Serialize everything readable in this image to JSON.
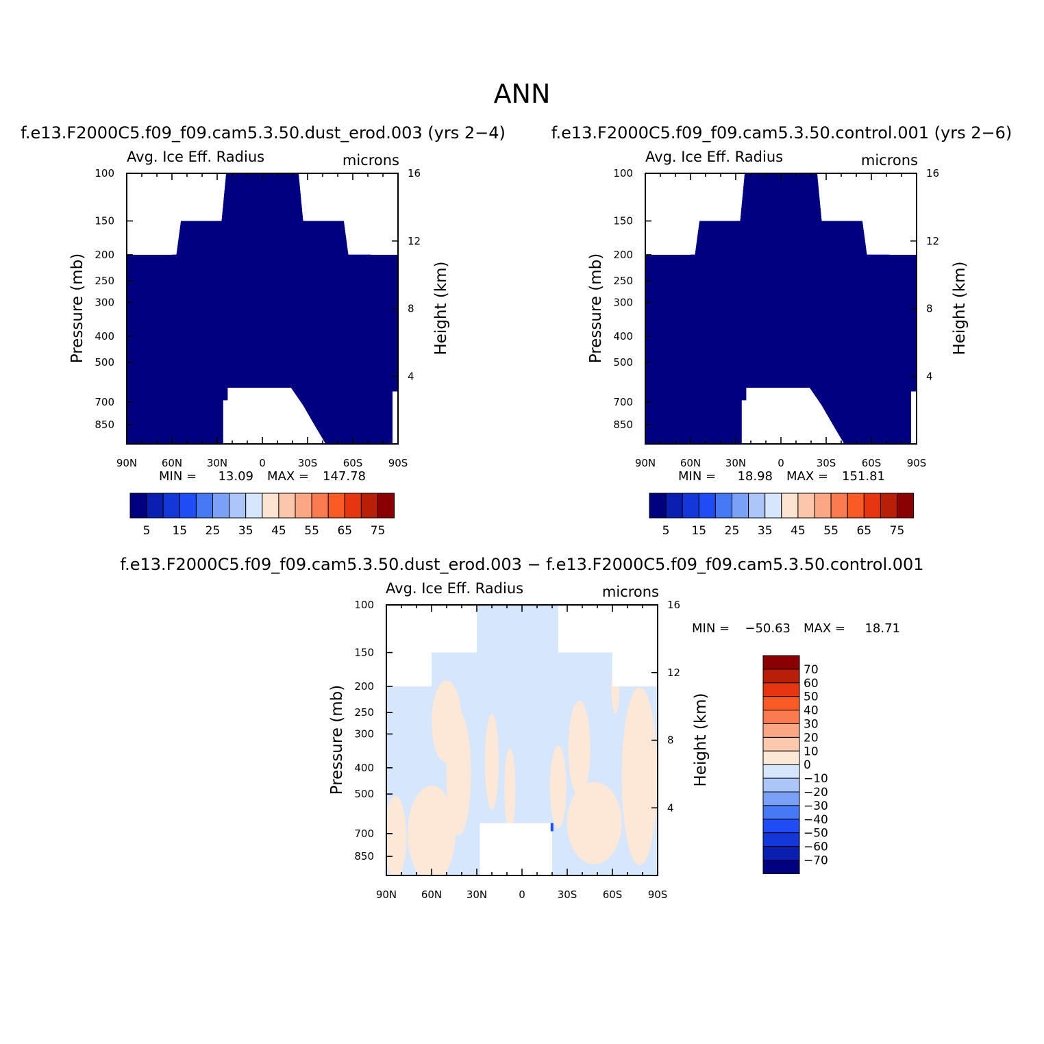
{
  "figure": {
    "title": "ANN"
  },
  "colors": {
    "sequential": [
      "#000080",
      "#0a1eb0",
      "#1437d9",
      "#1f4cf5",
      "#4779f7",
      "#7aa0f7",
      "#adc6fa",
      "#d6e6fc",
      "#fde4d2",
      "#fcc6aa",
      "#fca783",
      "#fc7a4f",
      "#fa5a23",
      "#e63510",
      "#b81e08",
      "#8b0000"
    ],
    "difference": [
      "#000080",
      "#0a1eb0",
      "#1437d9",
      "#1f4cf5",
      "#4779f7",
      "#7aa0f7",
      "#adc6fa",
      "#d6e6fc",
      "#fde8d8",
      "#fcc8ae",
      "#fca783",
      "#fc7a4f",
      "#fa5a23",
      "#e63510",
      "#b81e08",
      "#8b0000"
    ]
  },
  "chart_data": [
    {
      "type": "heatmap",
      "panel": "top-left",
      "title": "f.e13.F2000C5.f09_f09.cam5.3.50.dust_erod.003 (yrs 2−4)",
      "subtitle_left": "Avg. Ice Eff. Radius",
      "subtitle_right": "microns",
      "xlabel": "",
      "ylabel": "Pressure (mb)",
      "ylabel_right": "Height (km)",
      "x_ticks": [
        "90N",
        "60N",
        "30N",
        "0",
        "30S",
        "60S",
        "90S"
      ],
      "y_ticks": [
        "100",
        "150",
        "200",
        "250",
        "300",
        "400",
        "500",
        "700",
        "850"
      ],
      "y_ticks_right": [
        "16",
        "12",
        "8",
        "4"
      ],
      "x_range": [
        90,
        -90
      ],
      "y_range_mb": [
        100,
        1000
      ],
      "min_label": "MIN =",
      "min_value": "13.09",
      "max_label": "MAX =",
      "max_value": "147.78",
      "colorbar_labels": [
        "5",
        "15",
        "25",
        "35",
        "45",
        "55",
        "65",
        "75"
      ],
      "colorbar_levels": [
        5,
        10,
        15,
        20,
        25,
        30,
        35,
        40,
        45,
        50,
        55,
        60,
        65,
        70,
        75
      ]
    },
    {
      "type": "heatmap",
      "panel": "top-right",
      "title": "f.e13.F2000C5.f09_f09.cam5.3.50.control.001 (yrs 2−6)",
      "subtitle_left": "Avg. Ice Eff. Radius",
      "subtitle_right": "microns",
      "xlabel": "",
      "ylabel": "Pressure (mb)",
      "ylabel_right": "Height (km)",
      "x_ticks": [
        "90N",
        "60N",
        "30N",
        "0",
        "30S",
        "60S",
        "90S"
      ],
      "y_ticks": [
        "100",
        "150",
        "200",
        "250",
        "300",
        "400",
        "500",
        "700",
        "850"
      ],
      "y_ticks_right": [
        "16",
        "12",
        "8",
        "4"
      ],
      "x_range": [
        90,
        -90
      ],
      "y_range_mb": [
        100,
        1000
      ],
      "min_label": "MIN =",
      "min_value": "18.98",
      "max_label": "MAX =",
      "max_value": "151.81",
      "colorbar_labels": [
        "5",
        "15",
        "25",
        "35",
        "45",
        "55",
        "65",
        "75"
      ],
      "colorbar_levels": [
        5,
        10,
        15,
        20,
        25,
        30,
        35,
        40,
        45,
        50,
        55,
        60,
        65,
        70,
        75
      ]
    },
    {
      "type": "heatmap",
      "panel": "bottom",
      "title": "f.e13.F2000C5.f09_f09.cam5.3.50.dust_erod.003 − f.e13.F2000C5.f09_f09.cam5.3.50.control.001",
      "subtitle_left": "Avg. Ice Eff. Radius",
      "subtitle_right": "microns",
      "xlabel": "",
      "ylabel": "Pressure (mb)",
      "ylabel_right": "Height (km)",
      "x_ticks": [
        "90N",
        "60N",
        "30N",
        "0",
        "30S",
        "60S",
        "90S"
      ],
      "y_ticks": [
        "100",
        "150",
        "200",
        "250",
        "300",
        "400",
        "500",
        "700",
        "850"
      ],
      "y_ticks_right": [
        "16",
        "12",
        "8",
        "4"
      ],
      "x_range": [
        90,
        -90
      ],
      "y_range_mb": [
        100,
        1000
      ],
      "min_label": "MIN =",
      "min_value": "−50.63",
      "max_label": "MAX =",
      "max_value": "18.71",
      "colorbar_labels": [
        "70",
        "60",
        "50",
        "40",
        "30",
        "20",
        "10",
        "0",
        "−10",
        "−20",
        "−30",
        "−40",
        "−50",
        "−60",
        "−70"
      ],
      "colorbar_levels": [
        -70,
        -60,
        -50,
        -40,
        -30,
        -20,
        -10,
        0,
        10,
        20,
        30,
        40,
        50,
        60,
        70
      ]
    }
  ]
}
